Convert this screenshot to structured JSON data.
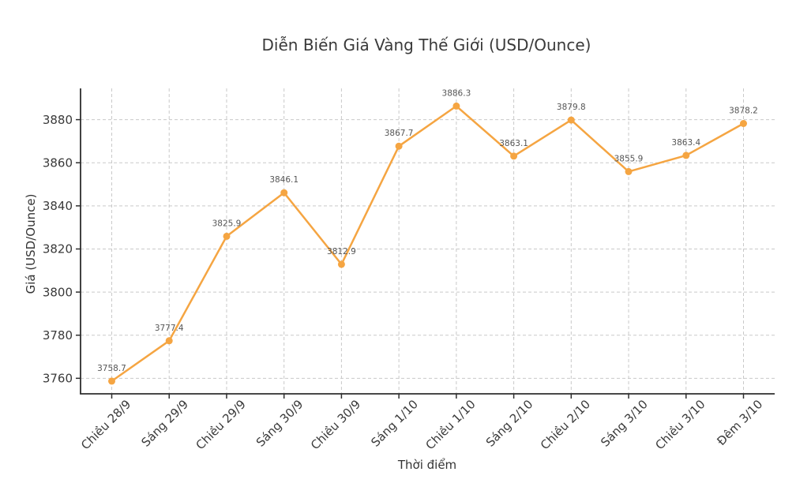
{
  "chart_data": {
    "type": "line",
    "title": "Diễn Biến Giá Vàng Thế Giới (USD/Ounce)",
    "xlabel": "Thời điểm",
    "ylabel": "Giá (USD/Ounce)",
    "categories": [
      "Chiều 28/9",
      "Sáng 29/9",
      "Chiều 29/9",
      "Sáng 30/9",
      "Chiều 30/9",
      "Sáng 1/10",
      "Chiều 1/10",
      "Sáng 2/10",
      "Chiều 2/10",
      "Sáng 3/10",
      "Chiều 3/10",
      "Đêm 3/10"
    ],
    "values": [
      3758.7,
      3777.4,
      3825.9,
      3846.1,
      3812.9,
      3867.7,
      3886.3,
      3863.1,
      3879.8,
      3855.9,
      3863.4,
      3878.2
    ],
    "point_labels": [
      "3758.7",
      "3777.4",
      "3825.9",
      "3846.1",
      "3812.9",
      "3867.7",
      "3886.3",
      "3863.1",
      "3879.8",
      "3855.9",
      "3863.4",
      "3878.2"
    ],
    "yticks": [
      3760,
      3780,
      3800,
      3820,
      3840,
      3860,
      3880
    ],
    "ylim": [
      3752.8,
      3894.5
    ],
    "grid": true,
    "grid_style": "dashed",
    "legend": "none",
    "marker": "circle",
    "colors": {
      "line": "#F5A542",
      "marker": "#F5A542",
      "grid": "#C9C9C9",
      "axis": "#2E2E2E",
      "tick_label": "#3A3A3A",
      "data_label": "#555555",
      "title": "#3A3A3A",
      "background": "#FFFFFF"
    }
  }
}
